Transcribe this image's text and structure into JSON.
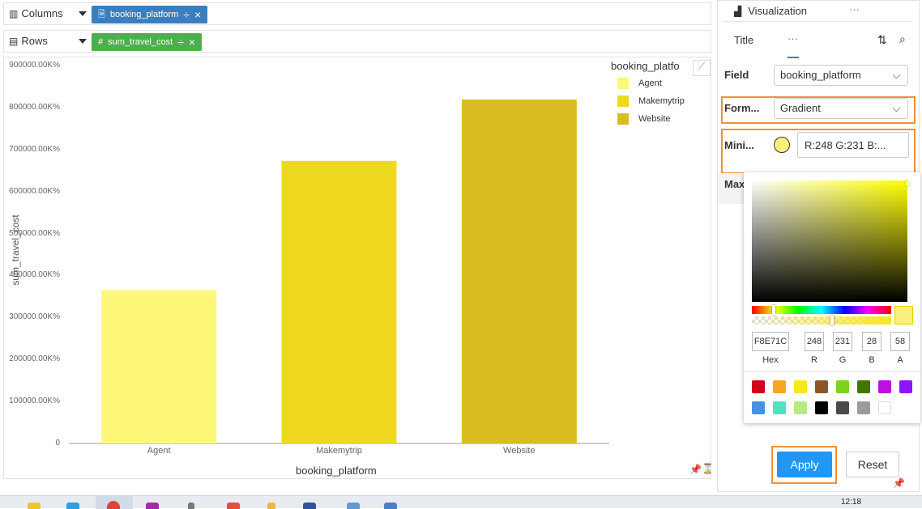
{
  "columns_shelf": {
    "label": "Columns",
    "pill": "booking_platform",
    "pill_color": "#3a7ebf"
  },
  "rows_shelf": {
    "label": "Rows",
    "pill": "sum_travel_cost",
    "pill_color": "#4cae4c"
  },
  "chart_data": {
    "type": "bar",
    "categories": [
      "Agent",
      "Makemytrip",
      "Website"
    ],
    "values": [
      365000,
      673000,
      819000
    ],
    "colors": [
      "#fdf77a",
      "#eed820",
      "#dabd22"
    ],
    "xlabel": "booking_platform",
    "ylabel": "sum_travel_cost",
    "ylim": [
      0,
      900000
    ],
    "yticks": [
      "0",
      "100000.00K%",
      "200000.00K%",
      "300000.00K%",
      "400000.00K%",
      "500000.00K%",
      "600000.00K%",
      "700000.00K%",
      "800000.00K%",
      "900000.00K%"
    ],
    "legend_title": "booking_platfo",
    "legend": [
      "Agent",
      "Makemytrip",
      "Website"
    ],
    "legend_position": "right"
  },
  "panel": {
    "tab_visualization": "Visualization",
    "tab_more": "···",
    "subtab_title": "Title",
    "subtab_more": "···",
    "field_label": "Field",
    "field_value": "booking_platform",
    "format_label": "Form...",
    "format_value": "Gradient",
    "min_label": "Mini...",
    "min_color_text": "R:248 G:231 B:...",
    "max_label": "Max",
    "apply_label": "Apply",
    "reset_label": "Reset"
  },
  "picker": {
    "hex": "F8E71C",
    "r": "248",
    "g": "231",
    "b": "28",
    "a": "58",
    "hex_label": "Hex",
    "r_label": "R",
    "g_label": "G",
    "b_label": "B",
    "a_label": "A",
    "swatches_row1": [
      "#d0021b",
      "#f5a623",
      "#f8e71c",
      "#8b572a",
      "#7ed321",
      "#417505",
      "#bd10e0",
      "#9013fe"
    ],
    "swatches_row2": [
      "#4a90e2",
      "#50e3c2",
      "#b8e986",
      "#000000",
      "#4a4a4a",
      "#9b9b9b",
      "#ffffff"
    ]
  },
  "taskbar": {
    "time": "12:18"
  }
}
